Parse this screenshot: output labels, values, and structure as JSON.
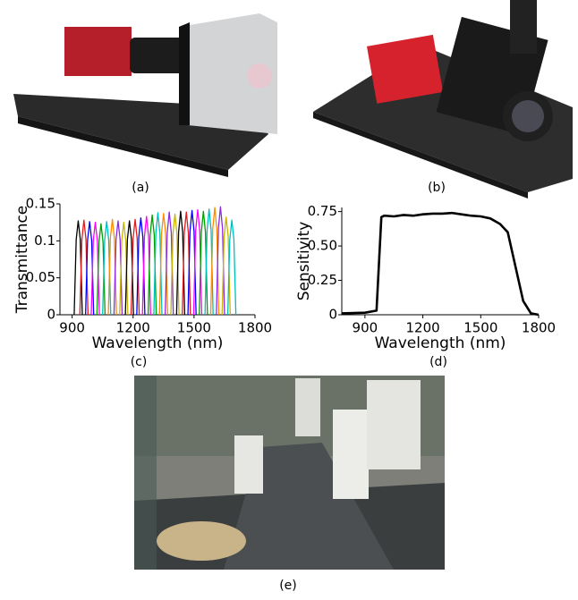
{
  "captions": [
    "(a)",
    "(b)",
    "(c)",
    "(d)",
    "(e)"
  ],
  "chart_data": [
    {
      "type": "line",
      "ylabel": "Transmittance",
      "xlabel": "Wavelength (nm)",
      "xlim": [
        840,
        1800
      ],
      "xticks": [
        900,
        1200,
        1500,
        1800
      ],
      "ylim": [
        0,
        0.15
      ],
      "yticks": [
        0,
        0.05,
        0.1,
        0.15
      ],
      "line_width": 1.3,
      "series": [
        {
          "color": "#000000",
          "x": [
            910,
            920,
            930,
            940,
            950
          ],
          "values": [
            0,
            0.102,
            0.127,
            0.102,
            0
          ]
        },
        {
          "color": "#e41a1c",
          "x": [
            938,
            948,
            958,
            968,
            978
          ],
          "values": [
            0,
            0.102,
            0.128,
            0.102,
            0
          ]
        },
        {
          "color": "#0000ff",
          "x": [
            966,
            976,
            986,
            996,
            1006
          ],
          "values": [
            0,
            0.101,
            0.126,
            0.101,
            0
          ]
        },
        {
          "color": "#ff00ff",
          "x": [
            994,
            1004,
            1014,
            1024,
            1034
          ],
          "values": [
            0,
            0.1,
            0.125,
            0.1,
            0
          ]
        },
        {
          "color": "#00a000",
          "x": [
            1022,
            1032,
            1042,
            1052,
            1062
          ],
          "values": [
            0,
            0.098,
            0.123,
            0.098,
            0
          ]
        },
        {
          "color": "#00bfbf",
          "x": [
            1050,
            1060,
            1070,
            1080,
            1090
          ],
          "values": [
            0,
            0.101,
            0.126,
            0.101,
            0
          ]
        },
        {
          "color": "#ff8c00",
          "x": [
            1078,
            1088,
            1098,
            1108,
            1118
          ],
          "values": [
            0,
            0.103,
            0.129,
            0.103,
            0
          ]
        },
        {
          "color": "#8a2be2",
          "x": [
            1106,
            1116,
            1126,
            1136,
            1146
          ],
          "values": [
            0,
            0.102,
            0.127,
            0.102,
            0
          ]
        },
        {
          "color": "#c8b400",
          "x": [
            1134,
            1144,
            1154,
            1164,
            1174
          ],
          "values": [
            0,
            0.1,
            0.125,
            0.1,
            0
          ]
        },
        {
          "color": "#000000",
          "x": [
            1162,
            1172,
            1182,
            1192,
            1202
          ],
          "values": [
            0,
            0.102,
            0.127,
            0.102,
            0
          ]
        },
        {
          "color": "#e41a1c",
          "x": [
            1190,
            1200,
            1210,
            1220,
            1230
          ],
          "values": [
            0,
            0.103,
            0.129,
            0.103,
            0
          ]
        },
        {
          "color": "#0000ff",
          "x": [
            1218,
            1228,
            1238,
            1248,
            1258
          ],
          "values": [
            0,
            0.105,
            0.131,
            0.105,
            0
          ]
        },
        {
          "color": "#ff00ff",
          "x": [
            1246,
            1256,
            1266,
            1276,
            1286
          ],
          "values": [
            0,
            0.106,
            0.133,
            0.106,
            0
          ]
        },
        {
          "color": "#00a000",
          "x": [
            1274,
            1284,
            1294,
            1304,
            1314
          ],
          "values": [
            0,
            0.108,
            0.135,
            0.108,
            0
          ]
        },
        {
          "color": "#00bfbf",
          "x": [
            1302,
            1312,
            1322,
            1332,
            1342
          ],
          "values": [
            0,
            0.11,
            0.138,
            0.11,
            0
          ]
        },
        {
          "color": "#ff8c00",
          "x": [
            1330,
            1340,
            1350,
            1360,
            1370
          ],
          "values": [
            0,
            0.11,
            0.137,
            0.11,
            0
          ]
        },
        {
          "color": "#8a2be2",
          "x": [
            1358,
            1368,
            1378,
            1388,
            1398
          ],
          "values": [
            0,
            0.111,
            0.139,
            0.111,
            0
          ]
        },
        {
          "color": "#c8b400",
          "x": [
            1386,
            1396,
            1406,
            1416,
            1426
          ],
          "values": [
            0,
            0.109,
            0.136,
            0.109,
            0
          ]
        },
        {
          "color": "#000000",
          "x": [
            1414,
            1424,
            1434,
            1444,
            1454
          ],
          "values": [
            0,
            0.112,
            0.14,
            0.112,
            0
          ]
        },
        {
          "color": "#e41a1c",
          "x": [
            1442,
            1452,
            1462,
            1472,
            1482
          ],
          "values": [
            0,
            0.111,
            0.139,
            0.111,
            0
          ]
        },
        {
          "color": "#0000ff",
          "x": [
            1470,
            1480,
            1490,
            1500,
            1510
          ],
          "values": [
            0,
            0.113,
            0.141,
            0.113,
            0
          ]
        },
        {
          "color": "#ff00ff",
          "x": [
            1498,
            1508,
            1518,
            1528,
            1538
          ],
          "values": [
            0,
            0.114,
            0.142,
            0.114,
            0
          ]
        },
        {
          "color": "#00a000",
          "x": [
            1526,
            1536,
            1546,
            1556,
            1566
          ],
          "values": [
            0,
            0.112,
            0.14,
            0.112,
            0
          ]
        },
        {
          "color": "#00bfbf",
          "x": [
            1554,
            1564,
            1574,
            1584,
            1594
          ],
          "values": [
            0,
            0.114,
            0.143,
            0.114,
            0
          ]
        },
        {
          "color": "#ff8c00",
          "x": [
            1582,
            1592,
            1602,
            1612,
            1622
          ],
          "values": [
            0,
            0.116,
            0.145,
            0.116,
            0
          ]
        },
        {
          "color": "#8a2be2",
          "x": [
            1610,
            1620,
            1630,
            1640,
            1650
          ],
          "values": [
            0,
            0.117,
            0.146,
            0.117,
            0
          ]
        },
        {
          "color": "#c8b400",
          "x": [
            1638,
            1648,
            1658,
            1668,
            1678
          ],
          "values": [
            0,
            0.106,
            0.132,
            0.106,
            0
          ]
        },
        {
          "color": "#00bfbf",
          "x": [
            1666,
            1676,
            1686,
            1696,
            1706
          ],
          "values": [
            0,
            0.102,
            0.128,
            0.102,
            0
          ]
        }
      ]
    },
    {
      "type": "line",
      "ylabel": "Sensitivity",
      "xlabel": "Wavelength (nm)",
      "xlim": [
        780,
        1800
      ],
      "xticks": [
        900,
        1200,
        1500,
        1800
      ],
      "ylim": [
        0,
        0.78
      ],
      "yticks": [
        0,
        0.25,
        {
          "value": 0.5,
          "label": "0.50"
        },
        0.75
      ],
      "line_width": 2.6,
      "series": [
        {
          "color": "#000000",
          "x": [
            780,
            900,
            960,
            985,
            1000,
            1050,
            1100,
            1150,
            1200,
            1250,
            1300,
            1350,
            1400,
            1450,
            1500,
            1550,
            1600,
            1640,
            1680,
            1720,
            1760,
            1800
          ],
          "values": [
            0.01,
            0.015,
            0.03,
            0.71,
            0.72,
            0.715,
            0.725,
            0.72,
            0.73,
            0.735,
            0.735,
            0.74,
            0.73,
            0.72,
            0.715,
            0.7,
            0.66,
            0.6,
            0.35,
            0.1,
            0.01,
            0
          ]
        }
      ]
    }
  ]
}
